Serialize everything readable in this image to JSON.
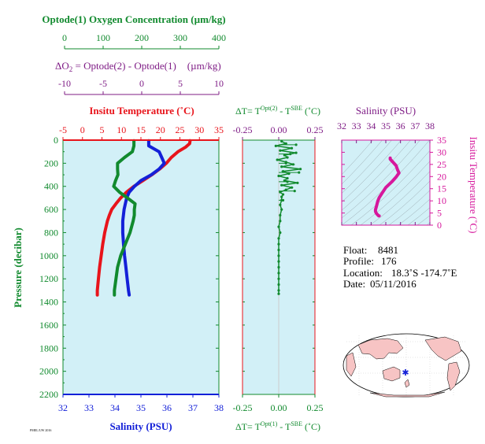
{
  "colors": {
    "green": "#118a2e",
    "purple": "#7f1d86",
    "red": "#e8141b",
    "blue": "#1320d8",
    "magenta": "#d6189c",
    "panel_bg": "#d2f0f7",
    "land": "#f7c4c4"
  },
  "header": {
    "oxygen_title": "Optode(1) Oxygen Concentration (µm/kg)",
    "oxygen_ticks": [
      "0",
      "100",
      "200",
      "300",
      "400"
    ],
    "delta_o2_prefix": "ΔO",
    "delta_o2_sub": "2",
    "delta_o2_rest": " = Optode(2) - Optode(1)",
    "delta_o2_units": "(µm/kg)",
    "delta_o2_ticks": [
      "-10",
      "-5",
      "0",
      "5",
      "10"
    ]
  },
  "main_panel": {
    "temp_title": "Insitu Temperature (˚C)",
    "temp_ticks": [
      "-5",
      "0",
      "5",
      "10",
      "15",
      "20",
      "25",
      "30",
      "35"
    ],
    "salinity_label": "Salinity (PSU)",
    "salinity_ticks": [
      "32",
      "33",
      "34",
      "35",
      "36",
      "37",
      "38"
    ],
    "pressure_label": "Pressure (decibar)",
    "pressure_ticks": [
      "0",
      "200",
      "400",
      "600",
      "800",
      "1000",
      "1200",
      "1400",
      "1600",
      "1800",
      "2000",
      "2200"
    ],
    "footnote": "PMEL/UW 2016"
  },
  "dt_panel": {
    "top_title_prefix": "ΔT= T",
    "top_title_sup1": "Opt(2)",
    "top_title_mid": " - T",
    "top_title_sup2": "SBE",
    "top_title_units": " (˚C)",
    "top_ticks": [
      "-0.25",
      "0.00",
      "0.25"
    ],
    "bottom_title_prefix": "ΔT= T",
    "bottom_title_sup1": "Opt(1)",
    "bottom_title_mid": " - T",
    "bottom_title_sup2": "SBE",
    "bottom_title_units": " (˚C)",
    "bottom_ticks": [
      "-0.25",
      "0.00",
      "0.25"
    ]
  },
  "ts_panel": {
    "salinity_title": "Salinity (PSU)",
    "salinity_ticks": [
      "32",
      "33",
      "34",
      "35",
      "36",
      "37",
      "38"
    ],
    "temp_label": "Insitu Temperature (˚C)",
    "temp_ticks": [
      "0",
      "5",
      "10",
      "15",
      "20",
      "25",
      "30",
      "35"
    ]
  },
  "info": {
    "float_label": "Float:",
    "float_value": "8481",
    "profile_label": "Profile:",
    "profile_value": "176",
    "location_label": "Location:",
    "location_value": "18.3˚S -174.7˚E",
    "date_label": "Date:",
    "date_value": "05/11/2016"
  },
  "chart_data": [
    {
      "type": "line",
      "name": "profile-panel",
      "ylabel": "Pressure (decibar)",
      "ylim": [
        0,
        2200
      ],
      "y_inverted": true,
      "axes": {
        "temperature": {
          "label": "Insitu Temperature (˚C)",
          "lim": [
            -5,
            35
          ]
        },
        "salinity": {
          "label": "Salinity (PSU)",
          "lim": [
            32,
            38
          ]
        },
        "oxygen": {
          "label": "Optode(1) Oxygen Concentration (µm/kg)",
          "lim": [
            0,
            400
          ]
        }
      },
      "series": [
        {
          "axis": "temperature",
          "color": "#e8141b",
          "pressure": [
            5,
            30,
            60,
            100,
            150,
            200,
            250,
            300,
            350,
            400,
            450,
            500,
            550,
            600,
            650,
            700,
            800,
            900,
            1000,
            1100,
            1200,
            1300,
            1340
          ],
          "values": [
            27.6,
            27.5,
            26.5,
            24.5,
            22.8,
            21.5,
            19.8,
            17.8,
            15.5,
            13.2,
            11.3,
            9.8,
            8.6,
            7.5,
            6.9,
            6.4,
            5.7,
            5.2,
            4.8,
            4.4,
            4.1,
            3.8,
            3.8
          ]
        },
        {
          "axis": "salinity",
          "color": "#1320d8",
          "pressure": [
            5,
            50,
            100,
            150,
            200,
            250,
            300,
            350,
            400,
            450,
            500,
            550,
            600,
            700,
            800,
            900,
            1000,
            1100,
            1200,
            1300,
            1340
          ],
          "values": [
            35.3,
            35.3,
            35.7,
            35.8,
            35.9,
            35.7,
            35.4,
            35.0,
            34.75,
            34.55,
            34.45,
            34.4,
            34.35,
            34.3,
            34.3,
            34.33,
            34.37,
            34.42,
            34.47,
            34.52,
            34.55
          ]
        },
        {
          "axis": "oxygen",
          "color": "#118a2e",
          "pressure": [
            5,
            50,
            100,
            150,
            200,
            250,
            300,
            350,
            400,
            450,
            500,
            550,
            600,
            650,
            700,
            800,
            900,
            1000,
            1100,
            1200,
            1300,
            1340
          ],
          "values": [
            182,
            182,
            178,
            158,
            140,
            140,
            141,
            135,
            130,
            145,
            165,
            185,
            183,
            183,
            180,
            172,
            160,
            148,
            140,
            136,
            132,
            132
          ]
        }
      ]
    },
    {
      "type": "scatter",
      "name": "delta-t-panel",
      "xlabel": "ΔT= T Opt(2) - T SBE (˚C)",
      "xlim": [
        -0.25,
        0.25
      ],
      "ylim": [
        0,
        2200
      ],
      "y_inverted": true,
      "series": [
        {
          "name": "Opt(2) - SBE",
          "color": "#118a2e",
          "pressure": [
            10,
            30,
            50,
            70,
            90,
            110,
            130,
            150,
            170,
            190,
            210,
            230,
            250,
            270,
            290,
            310,
            330,
            350,
            370,
            390,
            410,
            430,
            450,
            470,
            490,
            520,
            560,
            600,
            650,
            700,
            750,
            800,
            850,
            900,
            950,
            1000,
            1050,
            1100,
            1150,
            1200,
            1250,
            1300,
            1330
          ],
          "values": [
            0.02,
            0.05,
            -0.02,
            0.09,
            0.01,
            0.12,
            0.04,
            0.06,
            -0.01,
            0.05,
            0.1,
            0.02,
            0.15,
            0.03,
            0.07,
            0.0,
            0.06,
            0.04,
            0.13,
            0.02,
            0.09,
            0.05,
            0.01,
            0.03,
            0.02,
            0.02,
            0.01,
            0.02,
            0.01,
            0.01,
            0.0,
            0.01,
            0.0,
            0.0,
            0.0,
            0.0,
            0.0,
            0.0,
            0.0,
            0.0,
            0.0,
            0.0,
            0.0
          ]
        },
        {
          "name": "Opt(1) - SBE",
          "color": "#118a2e",
          "pressure": [
            40,
            120,
            200,
            280,
            360,
            440,
            520
          ],
          "values": [
            0.12,
            0.08,
            0.05,
            0.14,
            0.06,
            0.11,
            0.03
          ]
        }
      ]
    },
    {
      "type": "line",
      "name": "ts-diagram",
      "xlabel": "Salinity (PSU)",
      "ylabel": "Insitu Temperature (˚C)",
      "xlim": [
        32,
        38
      ],
      "ylim": [
        0,
        35
      ],
      "series": [
        {
          "color": "#d6189c",
          "salinity": [
            35.3,
            35.3,
            35.7,
            35.8,
            35.9,
            35.7,
            35.4,
            35.0,
            34.75,
            34.55,
            34.45,
            34.4,
            34.35,
            34.3,
            34.3,
            34.33,
            34.37,
            34.42,
            34.47,
            34.52,
            34.55
          ],
          "temperature": [
            27.6,
            27.2,
            24.5,
            22.8,
            21.5,
            19.8,
            17.8,
            15.5,
            13.2,
            11.3,
            9.8,
            8.6,
            7.5,
            6.4,
            5.7,
            5.2,
            4.8,
            4.4,
            4.1,
            3.8,
            3.8
          ]
        }
      ]
    },
    {
      "type": "map",
      "name": "location-map",
      "marker": {
        "lat": -18.3,
        "lon": -174.7,
        "color": "#1320d8"
      }
    }
  ]
}
